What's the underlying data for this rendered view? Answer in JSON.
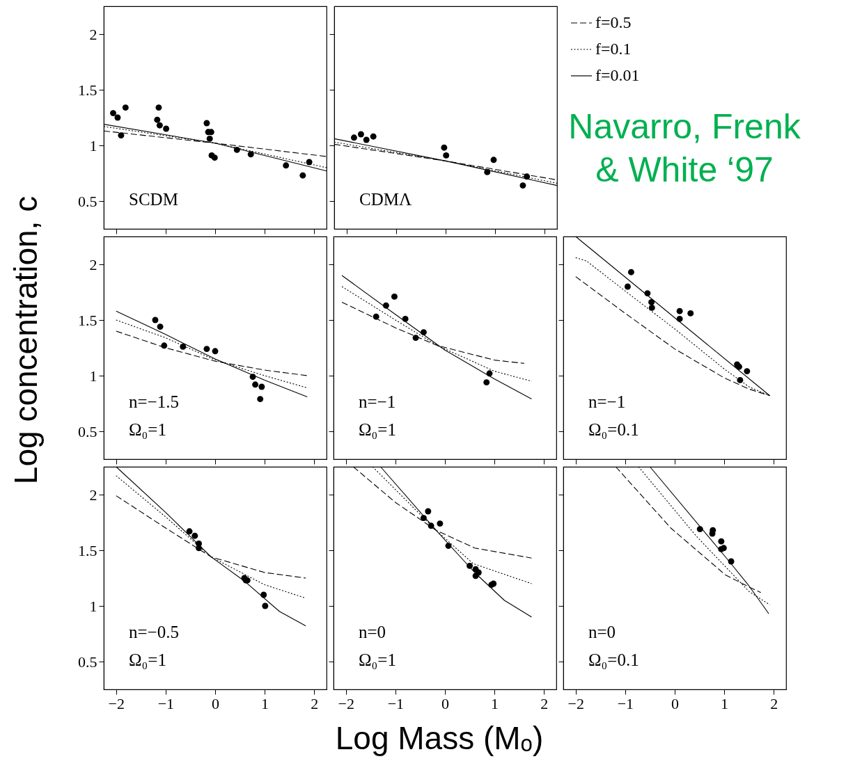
{
  "chart_data": [
    {
      "type": "scatter",
      "xlim": [
        -2.25,
        2.25
      ],
      "ylim": [
        0.25,
        2.25
      ],
      "xticks": [
        -2,
        -1,
        0,
        1,
        2
      ],
      "yticks": [
        0.5,
        1,
        1.5,
        2
      ],
      "tick_labels": "y",
      "annotations": [
        "SCDM"
      ],
      "series": [
        {
          "type": "line",
          "line_style": "dashed",
          "color": "#000000",
          "x": [
            -2.25,
            0,
            2.25
          ],
          "values": [
            1.13,
            1.02,
            0.9
          ]
        },
        {
          "type": "line",
          "line_style": "dotted",
          "color": "#000000",
          "x": [
            -2.25,
            0,
            2.25
          ],
          "values": [
            1.17,
            1.02,
            0.8
          ]
        },
        {
          "type": "line",
          "line_style": "solid",
          "color": "#000000",
          "x": [
            -2.25,
            0,
            2.25
          ],
          "values": [
            1.19,
            1.02,
            0.77
          ]
        },
        {
          "type": "scatter",
          "marker": "circle",
          "color": "#000000",
          "x": [
            -2.06,
            -1.97,
            -1.9,
            -1.81,
            -1.17,
            -1.14,
            -1.12,
            -0.99,
            -0.17,
            -0.14,
            -0.11,
            -0.08,
            -0.07,
            -0.01,
            0.44,
            0.72,
            1.43,
            1.77,
            1.9
          ],
          "values": [
            1.29,
            1.25,
            1.09,
            1.34,
            1.23,
            1.34,
            1.18,
            1.15,
            1.2,
            1.12,
            1.06,
            1.12,
            0.91,
            0.89,
            0.96,
            0.92,
            0.82,
            0.73,
            0.85
          ]
        }
      ]
    },
    {
      "type": "scatter",
      "xlim": [
        -2.25,
        2.25
      ],
      "ylim": [
        0.25,
        2.25
      ],
      "xticks": [
        -2,
        -1,
        0,
        1,
        2
      ],
      "yticks": [
        0.5,
        1,
        1.5,
        2
      ],
      "tick_labels": false,
      "annotations": [
        "CDMΛ"
      ],
      "legend": "right",
      "series": [
        {
          "type": "line",
          "name": "f=0.5",
          "line_style": "dashed",
          "color": "#000000",
          "x": [
            -2.25,
            0,
            2.25
          ],
          "values": [
            1.01,
            0.86,
            0.69
          ]
        },
        {
          "type": "line",
          "name": "f=0.1",
          "line_style": "dotted",
          "color": "#000000",
          "x": [
            -2.25,
            0,
            2.25
          ],
          "values": [
            1.03,
            0.86,
            0.66
          ]
        },
        {
          "type": "line",
          "name": "f=0.01",
          "line_style": "solid",
          "color": "#000000",
          "x": [
            -2.25,
            0,
            2.25
          ],
          "values": [
            1.06,
            0.86,
            0.64
          ]
        },
        {
          "type": "scatter",
          "marker": "circle",
          "color": "#000000",
          "x": [
            -1.85,
            -1.71,
            -1.6,
            -1.46,
            -0.03,
            0.01,
            0.84,
            0.97,
            1.56,
            1.64
          ],
          "values": [
            1.07,
            1.1,
            1.05,
            1.08,
            0.98,
            0.91,
            0.76,
            0.87,
            0.64,
            0.72
          ]
        }
      ]
    },
    {
      "type": "other",
      "title": "Navarro, Frenk & White ‘97"
    },
    {
      "type": "scatter",
      "xlim": [
        -2.25,
        2.25
      ],
      "ylim": [
        0.25,
        2.25
      ],
      "xticks": [
        -2,
        -1,
        0,
        1,
        2
      ],
      "yticks": [
        0.5,
        1,
        1.5,
        2
      ],
      "tick_labels": "y",
      "annotations": [
        "n=−1.5",
        "Ω₀=1"
      ],
      "series": [
        {
          "type": "line",
          "line_style": "dashed",
          "color": "#000000",
          "x": [
            -2,
            -1,
            0,
            1,
            1.86
          ],
          "values": [
            1.4,
            1.25,
            1.13,
            1.05,
            1.0
          ]
        },
        {
          "type": "line",
          "line_style": "dotted",
          "color": "#000000",
          "x": [
            -2,
            -1,
            0,
            1,
            1.86
          ],
          "values": [
            1.5,
            1.34,
            1.14,
            1.0,
            0.89
          ]
        },
        {
          "type": "line",
          "line_style": "solid",
          "color": "#000000",
          "x": [
            -2,
            -1,
            0,
            1,
            1.86
          ],
          "values": [
            1.58,
            1.37,
            1.15,
            0.96,
            0.81
          ]
        },
        {
          "type": "scatter",
          "marker": "circle",
          "color": "#000000",
          "x": [
            -1.21,
            -1.11,
            -1.03,
            -0.65,
            -0.17,
            0,
            0.76,
            0.81,
            0.91,
            0.94
          ],
          "values": [
            1.5,
            1.44,
            1.27,
            1.26,
            1.24,
            1.22,
            0.99,
            0.92,
            0.79,
            0.9
          ]
        }
      ]
    },
    {
      "type": "scatter",
      "xlim": [
        -2.25,
        2.25
      ],
      "ylim": [
        0.25,
        2.25
      ],
      "xticks": [
        -2,
        -1,
        0,
        1,
        2
      ],
      "yticks": [
        0.5,
        1,
        1.5,
        2
      ],
      "tick_labels": false,
      "annotations": [
        "n=−1",
        "Ω₀=1"
      ],
      "series": [
        {
          "type": "line",
          "line_style": "dashed",
          "color": "#000000",
          "x": [
            -2.08,
            -1,
            -0.15,
            1,
            1.6
          ],
          "values": [
            1.66,
            1.43,
            1.27,
            1.14,
            1.11
          ]
        },
        {
          "type": "line",
          "line_style": "dotted",
          "color": "#000000",
          "x": [
            -2.08,
            -1,
            -0.15,
            1,
            1.75
          ],
          "values": [
            1.8,
            1.5,
            1.27,
            1.04,
            0.95
          ]
        },
        {
          "type": "line",
          "line_style": "solid",
          "color": "#000000",
          "x": [
            -2.08,
            -1,
            0,
            1,
            1.75
          ],
          "values": [
            1.9,
            1.55,
            1.23,
            0.97,
            0.79
          ]
        },
        {
          "type": "scatter",
          "marker": "circle",
          "color": "#000000",
          "x": [
            -1.39,
            -1.19,
            -1.02,
            -0.8,
            -0.59,
            -0.43,
            0.84,
            0.9
          ],
          "values": [
            1.53,
            1.63,
            1.71,
            1.51,
            1.34,
            1.39,
            0.94,
            1.02
          ]
        }
      ]
    },
    {
      "type": "scatter",
      "xlim": [
        -2.25,
        2.25
      ],
      "ylim": [
        0.25,
        2.25
      ],
      "xticks": [
        -2,
        -1,
        0,
        1,
        2
      ],
      "yticks": [
        0.5,
        1,
        1.5,
        2
      ],
      "tick_labels": false,
      "annotations": [
        "n=−1",
        "Ω₀=0.1"
      ],
      "series": [
        {
          "type": "line",
          "line_style": "dashed",
          "color": "#000000",
          "x": [
            -2,
            -1,
            0,
            1,
            1.5,
            1.92
          ],
          "values": [
            1.89,
            1.56,
            1.24,
            0.98,
            0.88,
            0.82
          ]
        },
        {
          "type": "line",
          "line_style": "dotted",
          "color": "#000000",
          "x": [
            -2,
            -1.78,
            -1,
            0,
            1,
            1.5,
            1.92
          ],
          "values": [
            2.06,
            2.03,
            1.76,
            1.42,
            1.06,
            0.9,
            0.82
          ]
        },
        {
          "type": "line",
          "line_style": "solid",
          "color": "#000000",
          "x": [
            -2,
            0,
            1.92
          ],
          "values": [
            2.25,
            1.52,
            0.82
          ]
        },
        {
          "type": "scatter",
          "marker": "circle",
          "color": "#000000",
          "x": [
            -0.88,
            -0.95,
            -0.55,
            -0.47,
            -0.46,
            0.1,
            0.1,
            0.32,
            1.26,
            1.3,
            1.46,
            1.32
          ],
          "values": [
            1.93,
            1.8,
            1.74,
            1.66,
            1.61,
            1.58,
            1.51,
            1.56,
            1.1,
            1.08,
            1.04,
            0.96
          ]
        }
      ]
    },
    {
      "type": "scatter",
      "xlim": [
        -2.25,
        2.25
      ],
      "ylim": [
        0.25,
        2.25
      ],
      "xticks": [
        -2,
        -1,
        0,
        1,
        2
      ],
      "yticks": [
        0.5,
        1,
        1.5,
        2
      ],
      "annotations": [
        "n=−0.5",
        "Ω₀=1"
      ],
      "series": [
        {
          "type": "line",
          "line_style": "dashed",
          "color": "#000000",
          "x": [
            -2,
            -1,
            -0.08,
            1,
            1.83
          ],
          "values": [
            1.99,
            1.7,
            1.44,
            1.3,
            1.25
          ]
        },
        {
          "type": "line",
          "line_style": "dotted",
          "color": "#000000",
          "x": [
            -2,
            -1,
            -0.08,
            1,
            1.83
          ],
          "values": [
            2.17,
            1.8,
            1.44,
            1.19,
            1.07
          ]
        },
        {
          "type": "line",
          "line_style": "solid",
          "color": "#000000",
          "x": [
            -2,
            -1,
            -0.08,
            0.6,
            1.3,
            1.83
          ],
          "values": [
            2.25,
            1.84,
            1.44,
            1.22,
            0.95,
            0.82
          ]
        },
        {
          "type": "scatter",
          "marker": "circle",
          "color": "#000000",
          "x": [
            -0.52,
            -0.41,
            -0.33,
            -0.33,
            0.59,
            0.65,
            0.62,
            0.98,
            1.01
          ],
          "values": [
            1.67,
            1.63,
            1.56,
            1.52,
            1.25,
            1.23,
            1.23,
            1.1,
            1.0
          ]
        }
      ]
    },
    {
      "type": "scatter",
      "xlim": [
        -2.25,
        2.25
      ],
      "ylim": [
        0.25,
        2.25
      ],
      "xticks": [
        -2,
        -1,
        0,
        1,
        2
      ],
      "yticks": [
        0.5,
        1,
        1.5,
        2
      ],
      "tick_labels": "x",
      "xlabel": "Log Mass (Mₒ)",
      "annotations": [
        "n=0",
        "Ω₀=1"
      ],
      "series": [
        {
          "type": "line",
          "line_style": "dashed",
          "color": "#000000",
          "x": [
            -1.85,
            -1,
            -0.18,
            0.6,
            1.75
          ],
          "values": [
            2.25,
            1.93,
            1.68,
            1.52,
            1.43
          ]
        },
        {
          "type": "line",
          "line_style": "dotted",
          "color": "#000000",
          "x": [
            -1.46,
            -0.18,
            0.57,
            1.75
          ],
          "values": [
            2.25,
            1.68,
            1.38,
            1.2
          ]
        },
        {
          "type": "line",
          "line_style": "solid",
          "color": "#000000",
          "x": [
            -1.3,
            -0.18,
            0.6,
            1.2,
            1.75
          ],
          "values": [
            2.25,
            1.68,
            1.3,
            1.05,
            0.9
          ]
        },
        {
          "type": "scatter",
          "marker": "circle",
          "color": "#000000",
          "x": [
            -0.43,
            -0.34,
            -0.28,
            -0.1,
            0.07,
            0.5,
            0.62,
            0.68,
            0.62,
            0.94,
            0.98
          ],
          "values": [
            1.79,
            1.85,
            1.72,
            1.74,
            1.54,
            1.36,
            1.33,
            1.3,
            1.27,
            1.19,
            1.2
          ]
        }
      ]
    },
    {
      "type": "scatter",
      "xlim": [
        -2.25,
        2.25
      ],
      "ylim": [
        0.25,
        2.25
      ],
      "xticks": [
        -2,
        -1,
        0,
        1,
        2
      ],
      "yticks": [
        0.5,
        1,
        1.5,
        2
      ],
      "tick_labels": "x",
      "ylabel": "Log concentration, c",
      "annotations": [
        "n=0",
        "Ω₀=0.1"
      ],
      "series": [
        {
          "type": "line",
          "line_style": "dashed",
          "color": "#000000",
          "x": [
            -1.19,
            -0.08,
            1.02,
            1.5,
            1.74
          ],
          "values": [
            2.25,
            1.7,
            1.28,
            1.17,
            1.12
          ]
        },
        {
          "type": "line",
          "line_style": "dotted",
          "color": "#000000",
          "x": [
            -0.73,
            0.43,
            1.5,
            1.92
          ],
          "values": [
            2.25,
            1.63,
            1.13,
            1.01
          ]
        },
        {
          "type": "line",
          "line_style": "solid",
          "color": "#000000",
          "x": [
            -0.5,
            1.1,
            1.5,
            1.9
          ],
          "values": [
            2.25,
            1.4,
            1.18,
            0.93
          ]
        },
        {
          "type": "scatter",
          "marker": "circle",
          "color": "#000000",
          "x": [
            0.51,
            0.77,
            0.76,
            0.94,
            0.94,
            0.99,
            1.14
          ],
          "values": [
            1.69,
            1.68,
            1.65,
            1.58,
            1.51,
            1.52,
            1.4
          ]
        }
      ]
    }
  ]
}
